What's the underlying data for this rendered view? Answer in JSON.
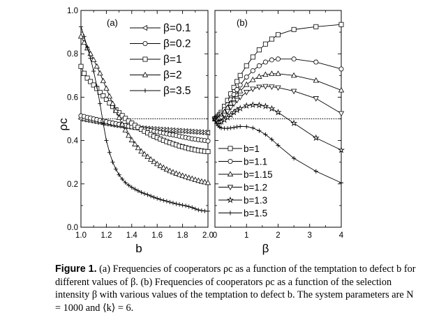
{
  "chart_data": [
    {
      "panel": "(a)",
      "type": "line",
      "xlabel": "b",
      "ylabel": "ρc",
      "xlim": [
        1.0,
        2.0
      ],
      "ylim": [
        0.0,
        1.0
      ],
      "xticks": [
        "1.0",
        "1.2",
        "1.4",
        "1.6",
        "1.8",
        "2.0"
      ],
      "yticks": [
        "0.0",
        "0.2",
        "0.4",
        "0.6",
        "0.8",
        "1.0"
      ],
      "reference_line": 0.5,
      "legend_position": "top-right",
      "x": [
        1.0,
        1.025,
        1.05,
        1.075,
        1.1,
        1.125,
        1.15,
        1.175,
        1.2,
        1.225,
        1.25,
        1.275,
        1.3,
        1.325,
        1.35,
        1.375,
        1.4,
        1.425,
        1.45,
        1.475,
        1.5,
        1.525,
        1.55,
        1.575,
        1.6,
        1.625,
        1.65,
        1.675,
        1.7,
        1.725,
        1.75,
        1.775,
        1.8,
        1.825,
        1.85,
        1.875,
        1.9,
        1.925,
        1.95,
        1.975,
        2.0
      ],
      "series": [
        {
          "name": "β=0.1",
          "marker": "triangle-left",
          "values": [
            0.5,
            0.497,
            0.494,
            0.492,
            0.489,
            0.486,
            0.484,
            0.481,
            0.478,
            0.476,
            0.473,
            0.471,
            0.469,
            0.467,
            0.465,
            0.463,
            0.461,
            0.46,
            0.458,
            0.457,
            0.456,
            0.455,
            0.454,
            0.453,
            0.452,
            0.451,
            0.45,
            0.449,
            0.448,
            0.447,
            0.446,
            0.445,
            0.444,
            0.443,
            0.442,
            0.441,
            0.44,
            0.439,
            0.438,
            0.437,
            0.436
          ]
        },
        {
          "name": "β=0.2",
          "marker": "circle",
          "values": [
            0.514,
            0.511,
            0.507,
            0.504,
            0.5,
            0.497,
            0.493,
            0.49,
            0.487,
            0.484,
            0.481,
            0.478,
            0.475,
            0.472,
            0.469,
            0.466,
            0.463,
            0.46,
            0.458,
            0.455,
            0.452,
            0.449,
            0.446,
            0.443,
            0.44,
            0.437,
            0.434,
            0.431,
            0.428,
            0.426,
            0.423,
            0.42,
            0.417,
            0.414,
            0.411,
            0.408,
            0.406,
            0.404,
            0.402,
            0.4,
            0.398
          ]
        },
        {
          "name": "β=1",
          "marker": "square",
          "values": [
            0.742,
            0.71,
            0.688,
            0.672,
            0.656,
            0.64,
            0.622,
            0.606,
            0.59,
            0.573,
            0.557,
            0.542,
            0.528,
            0.515,
            0.502,
            0.49,
            0.48,
            0.47,
            0.461,
            0.452,
            0.443,
            0.435,
            0.427,
            0.42,
            0.413,
            0.407,
            0.401,
            0.395,
            0.39,
            0.385,
            0.38,
            0.375,
            0.371,
            0.367,
            0.363,
            0.36,
            0.357,
            0.354,
            0.352,
            0.35,
            0.349
          ]
        },
        {
          "name": "β=2",
          "marker": "triangle-up",
          "values": [
            0.88,
            0.852,
            0.826,
            0.8,
            0.772,
            0.742,
            0.71,
            0.675,
            0.64,
            0.604,
            0.57,
            0.537,
            0.505,
            0.475,
            0.448,
            0.423,
            0.402,
            0.383,
            0.366,
            0.35,
            0.337,
            0.325,
            0.313,
            0.302,
            0.292,
            0.283,
            0.275,
            0.267,
            0.26,
            0.254,
            0.248,
            0.243,
            0.238,
            0.233,
            0.228,
            0.224,
            0.219,
            0.215,
            0.211,
            0.208,
            0.205
          ]
        },
        {
          "name": "β=3.5",
          "marker": "plus",
          "values": [
            0.925,
            0.88,
            0.83,
            0.78,
            0.72,
            0.65,
            0.57,
            0.48,
            0.4,
            0.345,
            0.3,
            0.268,
            0.242,
            0.222,
            0.206,
            0.194,
            0.184,
            0.176,
            0.168,
            0.161,
            0.155,
            0.15,
            0.144,
            0.138,
            0.133,
            0.128,
            0.124,
            0.12,
            0.116,
            0.112,
            0.108,
            0.105,
            0.102,
            0.099,
            0.095,
            0.091,
            0.085,
            0.08,
            0.077,
            0.075,
            0.074
          ]
        }
      ]
    },
    {
      "panel": "(b)",
      "type": "line",
      "xlabel": "β",
      "xlim": [
        0,
        4
      ],
      "ylim": [
        0.0,
        1.0
      ],
      "xticks": [
        "0",
        "1",
        "2",
        "3",
        "4"
      ],
      "reference_line": 0.5,
      "legend_position": "bottom-left",
      "x": [
        0.0,
        0.05,
        0.1,
        0.15,
        0.2,
        0.3,
        0.4,
        0.5,
        0.6,
        0.7,
        0.8,
        1.0,
        1.2,
        1.4,
        1.6,
        1.8,
        2.0,
        2.5,
        3.2,
        4.0
      ],
      "series": [
        {
          "name": "b=1",
          "marker": "square",
          "values": [
            0.5,
            0.505,
            0.512,
            0.52,
            0.53,
            0.558,
            0.585,
            0.615,
            0.645,
            0.672,
            0.7,
            0.745,
            0.785,
            0.818,
            0.845,
            0.868,
            0.888,
            0.912,
            0.925,
            0.935
          ]
        },
        {
          "name": "b=1.1",
          "marker": "circle",
          "values": [
            0.5,
            0.503,
            0.508,
            0.515,
            0.523,
            0.543,
            0.565,
            0.588,
            0.612,
            0.635,
            0.656,
            0.693,
            0.722,
            0.745,
            0.762,
            0.772,
            0.776,
            0.776,
            0.762,
            0.73
          ]
        },
        {
          "name": "b=1.15",
          "marker": "triangle-up",
          "values": [
            0.5,
            0.5,
            0.503,
            0.508,
            0.514,
            0.532,
            0.552,
            0.572,
            0.592,
            0.611,
            0.628,
            0.658,
            0.68,
            0.695,
            0.704,
            0.708,
            0.708,
            0.7,
            0.677,
            0.632
          ]
        },
        {
          "name": "b=1.2",
          "marker": "triangle-down",
          "values": [
            0.5,
            0.496,
            0.496,
            0.499,
            0.504,
            0.518,
            0.535,
            0.553,
            0.57,
            0.586,
            0.6,
            0.623,
            0.638,
            0.647,
            0.65,
            0.648,
            0.644,
            0.628,
            0.594,
            0.525
          ]
        },
        {
          "name": "b=1.3",
          "marker": "star",
          "values": [
            0.5,
            0.49,
            0.485,
            0.485,
            0.487,
            0.495,
            0.506,
            0.518,
            0.53,
            0.54,
            0.548,
            0.56,
            0.564,
            0.563,
            0.558,
            0.547,
            0.53,
            0.48,
            0.412,
            0.356
          ]
        },
        {
          "name": "b=1.5",
          "marker": "plus",
          "values": [
            0.5,
            0.478,
            0.468,
            0.462,
            0.458,
            0.456,
            0.456,
            0.458,
            0.46,
            0.463,
            0.465,
            0.464,
            0.458,
            0.445,
            0.428,
            0.405,
            0.378,
            0.318,
            0.258,
            0.205
          ]
        }
      ]
    }
  ],
  "caption": {
    "label": "Figure 1.",
    "text": "(a) Frequencies of cooperators ρc as a function of the temptation to defect b for different values of β. (b) Frequencies of cooperators ρc as a function of the selection intensity β with various values of the temptation to defect b. The system parameters are N = 1000 and ⟨k⟩ = 6."
  }
}
